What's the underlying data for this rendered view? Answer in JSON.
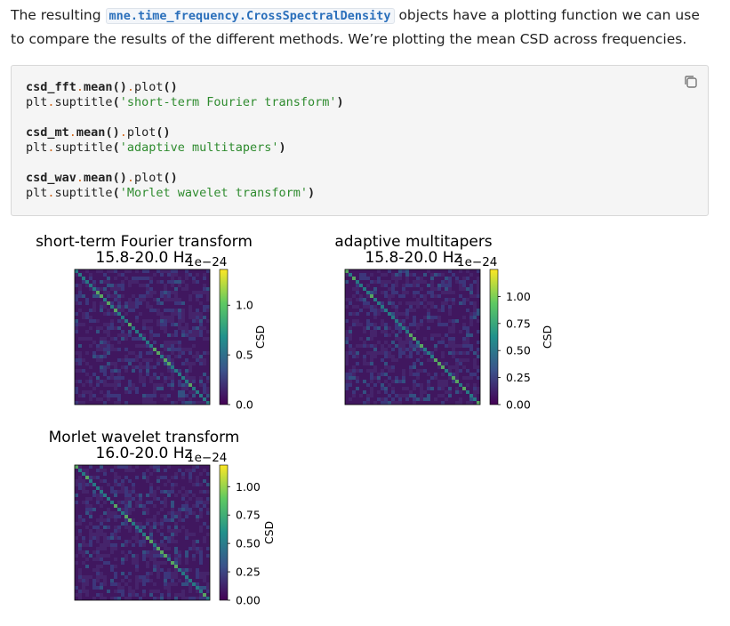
{
  "paragraph": {
    "text_before": "The resulting",
    "code": "mne.time_frequency.CrossSpectralDensity",
    "text_after": "objects have a plotting function we can use to compare the results of the different methods. We’re plotting the mean CSD across frequencies."
  },
  "code_block": {
    "groups": [
      [
        [
          "csd_fft",
          ".",
          "mean",
          "()",
          ".",
          "plot",
          "()"
        ],
        [
          "plt",
          ".",
          "suptitle",
          "(",
          "'short-term Fourier transform'",
          ")"
        ]
      ],
      [
        [
          "csd_mt",
          ".",
          "mean",
          "()",
          ".",
          "plot",
          "()"
        ],
        [
          "plt",
          ".",
          "suptitle",
          "(",
          "'adaptive multitapers'",
          ")"
        ]
      ],
      [
        [
          "csd_wav",
          ".",
          "mean",
          "()",
          ".",
          "plot",
          "()"
        ],
        [
          "plt",
          ".",
          "suptitle",
          "(",
          "'Morlet wavelet transform'",
          ")"
        ]
      ]
    ]
  },
  "figures": [
    {
      "title": "short-term Fourier transform",
      "subtitle": "15.8-20.0 Hz",
      "offset": "1e−24",
      "colorbar_label": "CSD",
      "clim": [
        0,
        1.36
      ],
      "ticks": [
        {
          "value": 0,
          "label": "0.0"
        },
        0.5,
        {
          "value": 1,
          "label": "1.0"
        }
      ]
    },
    {
      "title": "adaptive multitapers",
      "subtitle": "15.8-20.0 Hz",
      "offset": "1e−24",
      "colorbar_label": "CSD",
      "clim": [
        0,
        1.25
      ],
      "ticks": [
        {
          "value": 0,
          "label": "0.00"
        },
        0.25,
        {
          "value": 0.5,
          "label": "0.50"
        },
        0.75,
        {
          "value": 1,
          "label": "1.00"
        }
      ]
    },
    {
      "title": "Morlet wavelet transform",
      "subtitle": "16.0-20.0 Hz",
      "offset": "1e−24",
      "colorbar_label": "CSD",
      "clim": [
        0,
        1.19
      ],
      "ticks": [
        {
          "value": 0,
          "label": "0.00"
        },
        0.25,
        {
          "value": 0.5,
          "label": "0.50"
        },
        0.75,
        {
          "value": 1,
          "label": "1.00"
        }
      ]
    }
  ]
}
